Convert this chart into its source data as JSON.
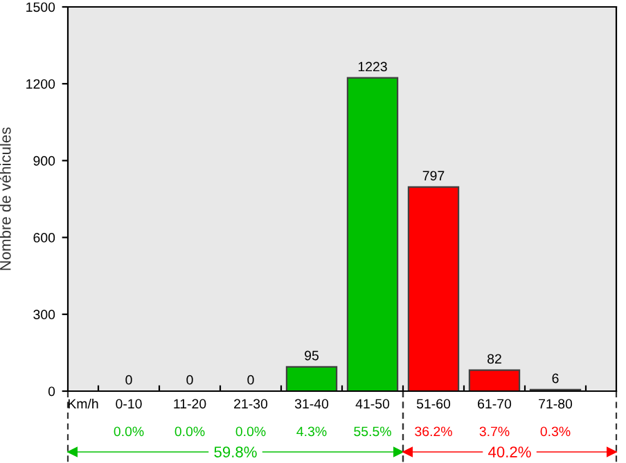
{
  "chart_data": {
    "type": "bar",
    "ylabel": "Nombre de véhicules",
    "xlabel": "Km/h",
    "categories": [
      "0-10",
      "11-20",
      "21-30",
      "31-40",
      "41-50",
      "51-60",
      "61-70",
      "71-80"
    ],
    "values": [
      0,
      0,
      0,
      95,
      1223,
      797,
      82,
      6
    ],
    "colors": [
      "#00c000",
      "#00c000",
      "#00c000",
      "#00c000",
      "#00c000",
      "#ff0000",
      "#ff0000",
      "#ff0000"
    ],
    "data_labels": true,
    "ylim": [
      0,
      1500
    ],
    "yticks": [
      0,
      300,
      600,
      900,
      1200,
      1500
    ],
    "annotations": [
      "0.0%",
      "0.0%",
      "0.0%",
      "4.3%",
      "55.5%",
      "36.2%",
      "3.7%",
      "0.3%",
      "59.8%",
      "40.2%"
    ]
  }
}
